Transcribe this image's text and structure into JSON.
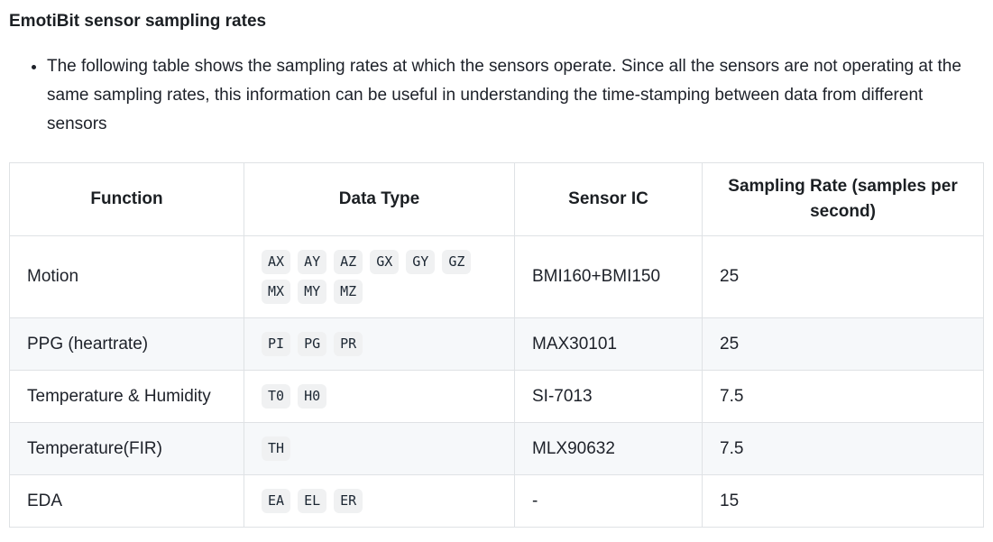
{
  "page": {
    "title": "EmotiBit sensor sampling rates",
    "bullet_text": "The following table shows the sampling rates at which the sensors operate. Since all the sensors are not operating at the same sampling rates, this information can be useful in understanding the time-stamping between data from different sensors"
  },
  "table": {
    "headers": [
      "Function",
      "Data Type",
      "Sensor IC",
      "Sampling Rate (samples per second)"
    ],
    "rows": [
      {
        "function": "Motion",
        "data_types": [
          "AX",
          "AY",
          "AZ",
          "GX",
          "GY",
          "GZ",
          "MX",
          "MY",
          "MZ"
        ],
        "sensor_ic": "BMI160+BMI150",
        "sampling_rate": "25"
      },
      {
        "function": "PPG (heartrate)",
        "data_types": [
          "PI",
          "PG",
          "PR"
        ],
        "sensor_ic": "MAX30101",
        "sampling_rate": "25"
      },
      {
        "function": "Temperature & Humidity",
        "data_types": [
          "T0",
          "H0"
        ],
        "sensor_ic": "SI-7013",
        "sampling_rate": "7.5"
      },
      {
        "function": "Temperature(FIR)",
        "data_types": [
          "TH"
        ],
        "sensor_ic": "MLX90632",
        "sampling_rate": "7.5"
      },
      {
        "function": "EDA",
        "data_types": [
          "EA",
          "EL",
          "ER"
        ],
        "sensor_ic": "-",
        "sampling_rate": "15"
      }
    ]
  },
  "colors": {
    "row_stripe": "#f6f8fa",
    "table_border": "#dfe2e5",
    "chip_background": "#f0f1f2",
    "heading_text": "#1b1f23",
    "body_text": "#1d2129"
  }
}
